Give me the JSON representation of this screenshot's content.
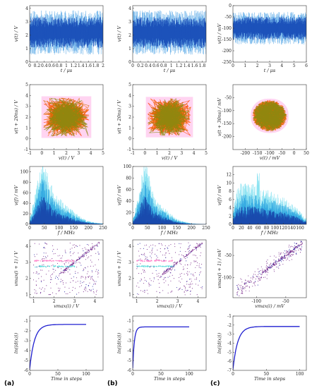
{
  "figure": {
    "column_labels": [
      "(a)",
      "(b)",
      "(c)"
    ]
  },
  "chart_data": [
    {
      "type": "line",
      "panel": "a-time",
      "xlabel": "t / μs",
      "ylabel": "v(t) / V",
      "xlim": [
        0,
        2
      ],
      "ylim": [
        0,
        4.2
      ],
      "xticks": [
        "0",
        "0.2",
        "0.4",
        "0.6",
        "0.8",
        "1",
        "1.2",
        "1.4",
        "1.6",
        "1.8",
        "2"
      ],
      "xtickvals": [
        0,
        0.2,
        0.4,
        0.6,
        0.8,
        1,
        1.2,
        1.4,
        1.6,
        1.8,
        2
      ],
      "yticks": [
        "0",
        "1",
        "2",
        "3",
        "4"
      ],
      "ytickvals": [
        0,
        1,
        2,
        3,
        4
      ],
      "signal": {
        "min": 0.6,
        "max": 3.9,
        "mean": 2.2,
        "style": "dense-oscillation"
      }
    },
    {
      "type": "line",
      "panel": "b-time",
      "xlabel": "t / μs",
      "ylabel": "v(t) / V",
      "xlim": [
        0,
        1.9
      ],
      "ylim": [
        0,
        4.2
      ],
      "xticks": [
        "0",
        "0.2",
        "0.4",
        "0.6",
        "0.8",
        "1",
        "1.2",
        "1.4",
        "1.6",
        "1.8"
      ],
      "xtickvals": [
        0,
        0.2,
        0.4,
        0.6,
        0.8,
        1,
        1.2,
        1.4,
        1.6,
        1.8
      ],
      "yticks": [
        "0",
        "1",
        "2",
        "3",
        "4"
      ],
      "ytickvals": [
        0,
        1,
        2,
        3,
        4
      ],
      "signal": {
        "min": 0.6,
        "max": 3.9,
        "mean": 2.2,
        "style": "dense-oscillation"
      }
    },
    {
      "type": "line",
      "panel": "c-time",
      "xlabel": "t / μs",
      "ylabel": "v(t) / mV",
      "xlim": [
        0,
        6
      ],
      "ylim": [
        -250,
        0
      ],
      "xticks": [
        "0",
        "1",
        "2",
        "3",
        "4",
        "5",
        "6"
      ],
      "xtickvals": [
        0,
        1,
        2,
        3,
        4,
        5,
        6
      ],
      "yticks": [
        "-250",
        "-200",
        "-150",
        "-100",
        "-50",
        "0"
      ],
      "ytickvals": [
        -250,
        -200,
        -150,
        -100,
        -50,
        0
      ],
      "signal": {
        "min": -175,
        "max": -30,
        "mean": -100,
        "style": "dense-oscillation"
      }
    },
    {
      "type": "scatter",
      "panel": "a-phase",
      "xlabel": "v(t) / V",
      "ylabel": "v(t + 20ns) / V",
      "xlim": [
        -1,
        5
      ],
      "ylim": [
        -1,
        5
      ],
      "xticks": [
        "-1",
        "0",
        "1",
        "2",
        "3",
        "4",
        "5"
      ],
      "xtickvals": [
        -1,
        0,
        1,
        2,
        3,
        4,
        5
      ],
      "yticks": [
        "-1",
        "0",
        "1",
        "2",
        "3",
        "4",
        "5"
      ],
      "ytickvals": [
        -1,
        0,
        1,
        2,
        3,
        4,
        5
      ],
      "attractor": {
        "center": [
          2,
          2
        ],
        "halfwidth": [
          1.85,
          1.75
        ],
        "shape": "square"
      }
    },
    {
      "type": "scatter",
      "panel": "b-phase",
      "xlabel": "v(t) / V",
      "ylabel": "v(t + 20ns) / V",
      "xlim": [
        -1,
        5
      ],
      "ylim": [
        -1,
        5
      ],
      "xticks": [
        "-1",
        "0",
        "1",
        "2",
        "3",
        "4",
        "5"
      ],
      "xtickvals": [
        -1,
        0,
        1,
        2,
        3,
        4,
        5
      ],
      "yticks": [
        "-1",
        "0",
        "1",
        "2",
        "3",
        "4",
        "5"
      ],
      "ytickvals": [
        -1,
        0,
        1,
        2,
        3,
        4,
        5
      ],
      "attractor": {
        "center": [
          2,
          2
        ],
        "halfwidth": [
          1.75,
          1.7
        ],
        "shape": "square"
      }
    },
    {
      "type": "scatter",
      "panel": "c-phase",
      "xlabel": "v(t) / mV",
      "ylabel": "v(t + 30ns) / mV",
      "xlim": [
        -250,
        50
      ],
      "ylim": [
        -250,
        0
      ],
      "xticks": [
        "-200",
        "-150",
        "-100",
        "-50",
        "0",
        "50"
      ],
      "xtickvals": [
        -200,
        -150,
        -100,
        -50,
        0,
        50
      ],
      "yticks": [
        "-200",
        "-150",
        "-100",
        "-50"
      ],
      "ytickvals": [
        -200,
        -150,
        -100,
        -50
      ],
      "attractor": {
        "center": [
          -100,
          -120
        ],
        "halfwidth": [
          70,
          60
        ],
        "shape": "blob"
      }
    },
    {
      "type": "area",
      "panel": "a-spectrum",
      "xlabel": "f / MHz",
      "ylabel": "v(f) / mV",
      "xlim": [
        0,
        250
      ],
      "ylim": [
        0,
        110
      ],
      "xticks": [
        "0",
        "50",
        "100",
        "150",
        "200",
        "250"
      ],
      "xtickvals": [
        0,
        50,
        100,
        150,
        200,
        250
      ],
      "yticks": [
        "0",
        "20",
        "40",
        "60",
        "80",
        "100"
      ],
      "ytickvals": [
        0,
        20,
        40,
        60,
        80,
        100
      ],
      "envelope": [
        [
          0,
          5
        ],
        [
          15,
          30
        ],
        [
          30,
          55
        ],
        [
          40,
          70
        ],
        [
          50,
          75
        ],
        [
          60,
          60
        ],
        [
          75,
          45
        ],
        [
          100,
          30
        ],
        [
          125,
          22
        ],
        [
          150,
          15
        ],
        [
          175,
          8
        ],
        [
          200,
          4
        ],
        [
          225,
          2
        ],
        [
          250,
          1
        ]
      ],
      "peak": {
        "x": 45,
        "y": 100
      }
    },
    {
      "type": "area",
      "panel": "b-spectrum",
      "xlabel": "f / MHz",
      "ylabel": "v(f) / mV",
      "xlim": [
        0,
        250
      ],
      "ylim": [
        0,
        100
      ],
      "xticks": [
        "0",
        "50",
        "100",
        "150",
        "200",
        "250"
      ],
      "xtickvals": [
        0,
        50,
        100,
        150,
        200,
        250
      ],
      "yticks": [
        "0",
        "20",
        "40",
        "60",
        "80",
        "100"
      ],
      "ytickvals": [
        0,
        20,
        40,
        60,
        80,
        100
      ],
      "envelope": [
        [
          0,
          5
        ],
        [
          15,
          25
        ],
        [
          30,
          50
        ],
        [
          40,
          65
        ],
        [
          50,
          62
        ],
        [
          60,
          45
        ],
        [
          75,
          30
        ],
        [
          100,
          20
        ],
        [
          125,
          12
        ],
        [
          150,
          6
        ],
        [
          175,
          3
        ],
        [
          200,
          1
        ],
        [
          250,
          0
        ]
      ],
      "peak": {
        "x": 45,
        "y": 80
      }
    },
    {
      "type": "area",
      "panel": "c-spectrum",
      "xlabel": "f / MHz",
      "ylabel": "v(f) / mV",
      "xlim": [
        0,
        175
      ],
      "ylim": [
        0,
        14
      ],
      "xticks": [
        "0",
        "20",
        "40",
        "60",
        "80",
        "100",
        "120",
        "140",
        "160"
      ],
      "xtickvals": [
        0,
        20,
        40,
        60,
        80,
        100,
        120,
        140,
        160
      ],
      "yticks": [
        "0",
        "2",
        "4",
        "6",
        "8",
        "10",
        "12"
      ],
      "ytickvals": [
        0,
        2,
        4,
        6,
        8,
        10,
        12
      ],
      "envelope": [
        [
          0,
          2
        ],
        [
          10,
          5
        ],
        [
          20,
          6
        ],
        [
          40,
          6
        ],
        [
          60,
          5.5
        ],
        [
          80,
          5
        ],
        [
          100,
          4.5
        ],
        [
          120,
          4
        ],
        [
          140,
          3
        ],
        [
          160,
          2
        ],
        [
          170,
          1
        ]
      ],
      "peak": {
        "x": 60,
        "y": 12.5
      }
    },
    {
      "type": "scatter",
      "panel": "a-return",
      "xlabel": "vmax(i) / V",
      "ylabel": "vmax(i + 1) / V",
      "xlim": [
        0.8,
        4.4
      ],
      "ylim": [
        0.8,
        4.4
      ],
      "xticks": [
        "1",
        "2",
        "3",
        "4"
      ],
      "xtickvals": [
        1,
        2,
        3,
        4
      ],
      "yticks": [
        "1",
        "2",
        "3",
        "4"
      ],
      "ytickvals": [
        1,
        2,
        3,
        4
      ],
      "bands": [
        {
          "y": 3.1,
          "x0": 1.0,
          "x1": 3.0,
          "color": "#ff88cc"
        },
        {
          "y": 2.75,
          "x0": 1.0,
          "x1": 3.0,
          "color": "#66dddd"
        }
      ]
    },
    {
      "type": "scatter",
      "panel": "b-return",
      "xlabel": "vmax(i) / V",
      "ylabel": "vmax(i + 1) / V",
      "xlim": [
        0.8,
        4.4
      ],
      "ylim": [
        0.8,
        4.4
      ],
      "xticks": [
        "1",
        "2",
        "3",
        "4"
      ],
      "xtickvals": [
        1,
        2,
        3,
        4
      ],
      "yticks": [
        "1",
        "2",
        "3",
        "4"
      ],
      "ytickvals": [
        1,
        2,
        3,
        4
      ],
      "bands": [
        {
          "y": 3.1,
          "x0": 1.0,
          "x1": 2.8,
          "color": "#ff88cc"
        },
        {
          "y": 2.75,
          "x0": 1.0,
          "x1": 2.8,
          "color": "#66dddd"
        }
      ]
    },
    {
      "type": "scatter",
      "panel": "c-return",
      "xlabel": "vmax(i) / mV",
      "ylabel": "vmax(i + 1) / mV",
      "xlim": [
        -140,
        -15
      ],
      "ylim": [
        -145,
        -15
      ],
      "xticks": [
        "-100",
        "-50"
      ],
      "xtickvals": [
        -100,
        -50
      ],
      "yticks": [
        "-100",
        "-50"
      ],
      "ytickvals": [
        -100,
        -50
      ],
      "bands": []
    },
    {
      "type": "line",
      "panel": "a-divergence",
      "xlabel": "Time in steps",
      "ylabel": "ln(⟨d(x)⟩)",
      "xlim": [
        0,
        130
      ],
      "ylim": [
        -6,
        -0.5
      ],
      "xticks": [
        "0",
        "50",
        "100"
      ],
      "xtickvals": [
        0,
        50,
        100
      ],
      "yticks": [
        "-6",
        "-5",
        "-4",
        "-3",
        "-2",
        "-1"
      ],
      "ytickvals": [
        -6,
        -5,
        -4,
        -3,
        -2,
        -1
      ],
      "series": [
        {
          "color": "#1f1fd0",
          "start": -5.9,
          "plateau": -1.35,
          "rate": 0.12,
          "x_end": 100
        }
      ]
    },
    {
      "type": "line",
      "panel": "b-divergence",
      "xlabel": "Time in steps",
      "ylabel": "ln(⟨d(x)⟩)",
      "xlim": [
        0,
        130
      ],
      "ylim": [
        -6,
        -0.5
      ],
      "xticks": [
        "0",
        "50",
        "100"
      ],
      "xtickvals": [
        0,
        50,
        100
      ],
      "yticks": [
        "-6",
        "-5",
        "-4",
        "-3",
        "-2",
        "-1"
      ],
      "ytickvals": [
        -6,
        -5,
        -4,
        -3,
        -2,
        -1
      ],
      "series": [
        {
          "color": "#1f1fd0",
          "start": -5.8,
          "plateau": -1.6,
          "rate": 0.35,
          "x_end": 100
        }
      ]
    },
    {
      "type": "line",
      "panel": "c-divergence",
      "xlabel": "Time in steps",
      "ylabel": "ln(⟨d(x)⟩)",
      "xlim": [
        0,
        110
      ],
      "ylim": [
        -7,
        -1
      ],
      "xticks": [
        "0",
        "50",
        "100"
      ],
      "xtickvals": [
        0,
        50,
        100
      ],
      "yticks": [
        "-7",
        "-6",
        "-5",
        "-4",
        "-3",
        "-2",
        "-1"
      ],
      "ytickvals": [
        -7,
        -6,
        -5,
        -4,
        -3,
        -2,
        -1
      ],
      "series": [
        {
          "color": "#1f1fd0",
          "start": -6.9,
          "plateau": -2.15,
          "rate": 0.14,
          "x_end": 100
        }
      ]
    }
  ]
}
